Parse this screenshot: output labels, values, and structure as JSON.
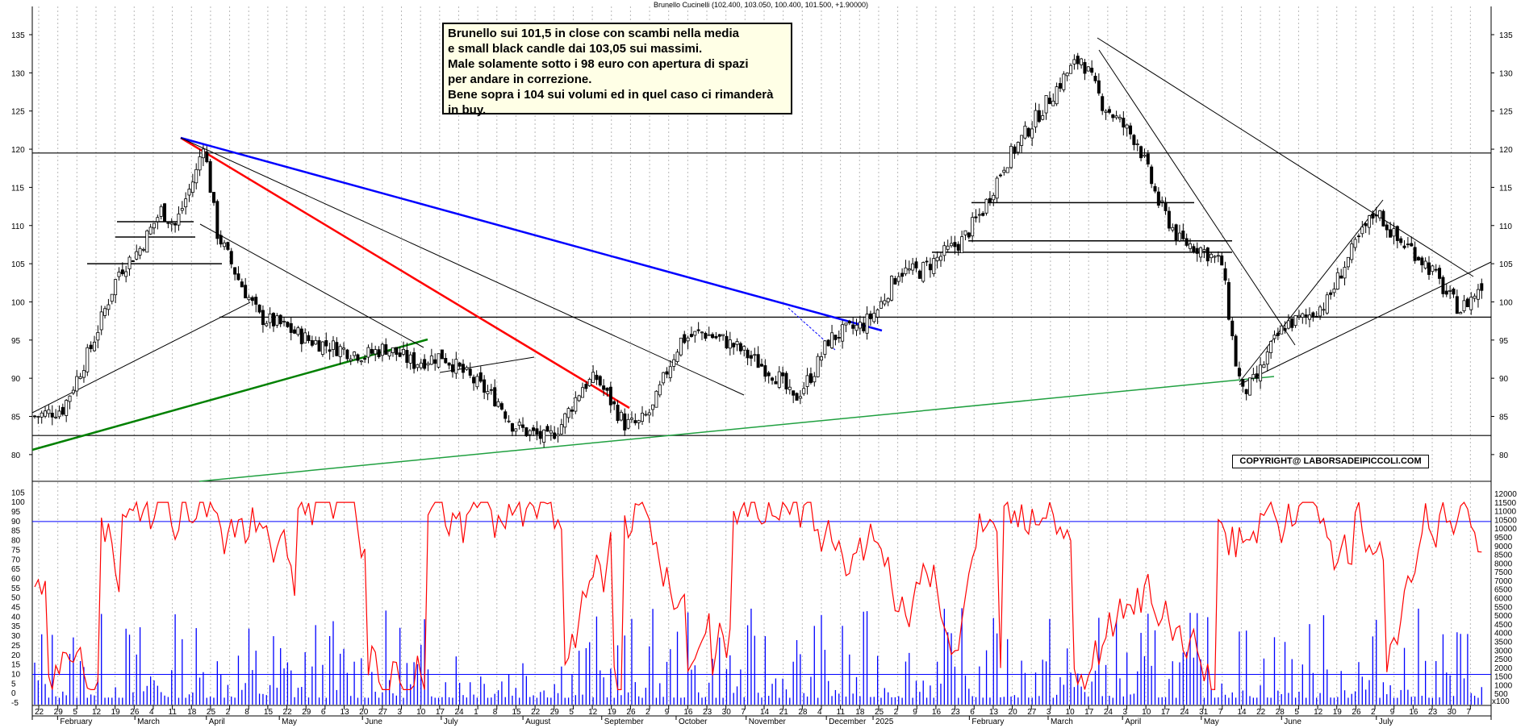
{
  "header": {
    "title": "Brunello Cucinelli (102.400, 103.050, 100.400, 101.500, +1.90000)"
  },
  "comment": {
    "lines": [
      "Brunello sui 101,5 in close con scambi nella media",
      "e small black candle dai 103,05 sui massimi.",
      "Male solamente sotto i 98 euro con apertura di spazi",
      "per andare in correzione.",
      "Bene sopra i 104 sui volumi ed in quel caso ci rimanderà",
      "in buy."
    ]
  },
  "copyright": "COPYRIGHT@ LABORSADEIPICCOLI.COM",
  "colors": {
    "candle_up": "#ffffff",
    "candle_down": "#000000",
    "stochastic": "#ff0000",
    "volume": "#0000ff",
    "trend_red": "#ff0000",
    "trend_blue": "#0000ff",
    "trend_green": "#008000",
    "trend_light_green": "#20a040"
  },
  "chart_data": [
    {
      "type": "candlestick",
      "ylim": [
        76,
        138
      ],
      "y_ticks": [
        80,
        85,
        90,
        95,
        100,
        105,
        110,
        115,
        120,
        125,
        130,
        135
      ],
      "grid": "vertical dotted",
      "day_ticks": [
        "22",
        "29",
        "5",
        "12",
        "19",
        "26",
        "4",
        "11",
        "18",
        "25",
        "2",
        "8",
        "15",
        "22",
        "29",
        "6",
        "13",
        "20",
        "27",
        "3",
        "10",
        "17",
        "24",
        "1",
        "8",
        "15",
        "22",
        "29",
        "5",
        "12",
        "19",
        "26",
        "2",
        "9",
        "16",
        "23",
        "30",
        "7",
        "14",
        "21",
        "28",
        "4",
        "11",
        "18",
        "25",
        "2",
        "9",
        "16",
        "23",
        "6",
        "13",
        "20",
        "27",
        "3",
        "10",
        "17",
        "24",
        "3",
        "10",
        "17",
        "24",
        "31",
        "7",
        "14",
        "22",
        "28",
        "5",
        "12",
        "19",
        "26",
        "2",
        "9",
        "16",
        "23",
        "30",
        "7"
      ],
      "month_labels": [
        "February",
        "March",
        "April",
        "May",
        "June",
        "July",
        "August",
        "September",
        "October",
        "November",
        "December",
        "2025",
        "February",
        "March",
        "April",
        "May",
        "June",
        "July"
      ],
      "last_candle": {
        "open": 102.4,
        "high": 103.05,
        "low": 100.4,
        "close": 101.5
      },
      "price_path": [
        [
          0,
          85
        ],
        [
          8,
          86
        ],
        [
          16,
          94
        ],
        [
          24,
          104
        ],
        [
          30,
          107
        ],
        [
          36,
          112
        ],
        [
          40,
          110
        ],
        [
          46,
          117
        ],
        [
          48,
          121
        ],
        [
          52,
          109
        ],
        [
          58,
          103
        ],
        [
          64,
          98
        ],
        [
          70,
          97
        ],
        [
          78,
          95
        ],
        [
          86,
          94
        ],
        [
          94,
          93
        ],
        [
          100,
          94
        ],
        [
          108,
          92
        ],
        [
          116,
          93
        ],
        [
          124,
          90
        ],
        [
          132,
          87
        ],
        [
          136,
          84
        ],
        [
          140,
          83
        ],
        [
          146,
          82
        ],
        [
          150,
          84
        ],
        [
          156,
          89
        ],
        [
          160,
          90
        ],
        [
          164,
          87
        ],
        [
          168,
          84
        ],
        [
          172,
          84
        ],
        [
          176,
          86
        ],
        [
          180,
          91
        ],
        [
          184,
          95
        ],
        [
          190,
          96
        ],
        [
          196,
          95
        ],
        [
          200,
          94
        ],
        [
          206,
          92
        ],
        [
          212,
          90
        ],
        [
          216,
          87
        ],
        [
          222,
          91
        ],
        [
          226,
          95
        ],
        [
          230,
          96
        ],
        [
          236,
          97
        ],
        [
          240,
          99
        ],
        [
          246,
          104
        ],
        [
          252,
          104
        ],
        [
          258,
          106
        ],
        [
          264,
          108
        ],
        [
          270,
          112
        ],
        [
          276,
          118
        ],
        [
          282,
          122
        ],
        [
          288,
          126
        ],
        [
          294,
          130
        ],
        [
          298,
          132
        ],
        [
          304,
          126
        ],
        [
          308,
          124
        ],
        [
          314,
          121
        ],
        [
          320,
          113
        ],
        [
          326,
          108
        ],
        [
          332,
          107
        ],
        [
          338,
          105
        ],
        [
          342,
          92
        ],
        [
          344,
          88
        ],
        [
          348,
          90
        ],
        [
          352,
          94
        ],
        [
          356,
          97
        ],
        [
          362,
          98
        ],
        [
          368,
          100
        ],
        [
          372,
          104
        ],
        [
          378,
          109
        ],
        [
          382,
          112
        ],
        [
          388,
          108
        ],
        [
          392,
          107
        ],
        [
          398,
          104
        ],
        [
          402,
          101
        ],
        [
          406,
          99
        ],
        [
          410,
          101
        ],
        [
          412,
          101.5
        ]
      ],
      "horizontal_levels": [
        119.5,
        98,
        82.5
      ],
      "short_levels": [
        108.5,
        110.5,
        105,
        113,
        108,
        106.5
      ],
      "trendlines": [
        {
          "color": "red",
          "from": "March peak 120.5",
          "to": "August 84.5"
        },
        {
          "color": "blue",
          "from": "March peak 120.5",
          "to": "November 95"
        },
        {
          "color": "green",
          "from": "January 79",
          "to": "June 93"
        },
        {
          "color": "light-green",
          "from": "March 70.5",
          "to": "April 2025 88"
        }
      ]
    },
    {
      "type": "line+bar",
      "series": [
        {
          "kind": "line",
          "color": "red"
        },
        {
          "kind": "bar",
          "color": "blue"
        }
      ],
      "left_ticks": [
        105,
        100,
        95,
        90,
        85,
        80,
        75,
        70,
        65,
        60,
        55,
        50,
        45,
        40,
        35,
        30,
        25,
        20,
        15,
        10,
        5,
        0,
        -5
      ],
      "right_ticks": [
        12000,
        11500,
        11000,
        10500,
        10000,
        9500,
        9000,
        8500,
        8000,
        7500,
        7000,
        6500,
        6000,
        5500,
        5000,
        4500,
        4000,
        3500,
        3000,
        2500,
        2000,
        1500,
        1000,
        500
      ],
      "right_unit": "x100",
      "levels": [
        90,
        10
      ]
    }
  ]
}
